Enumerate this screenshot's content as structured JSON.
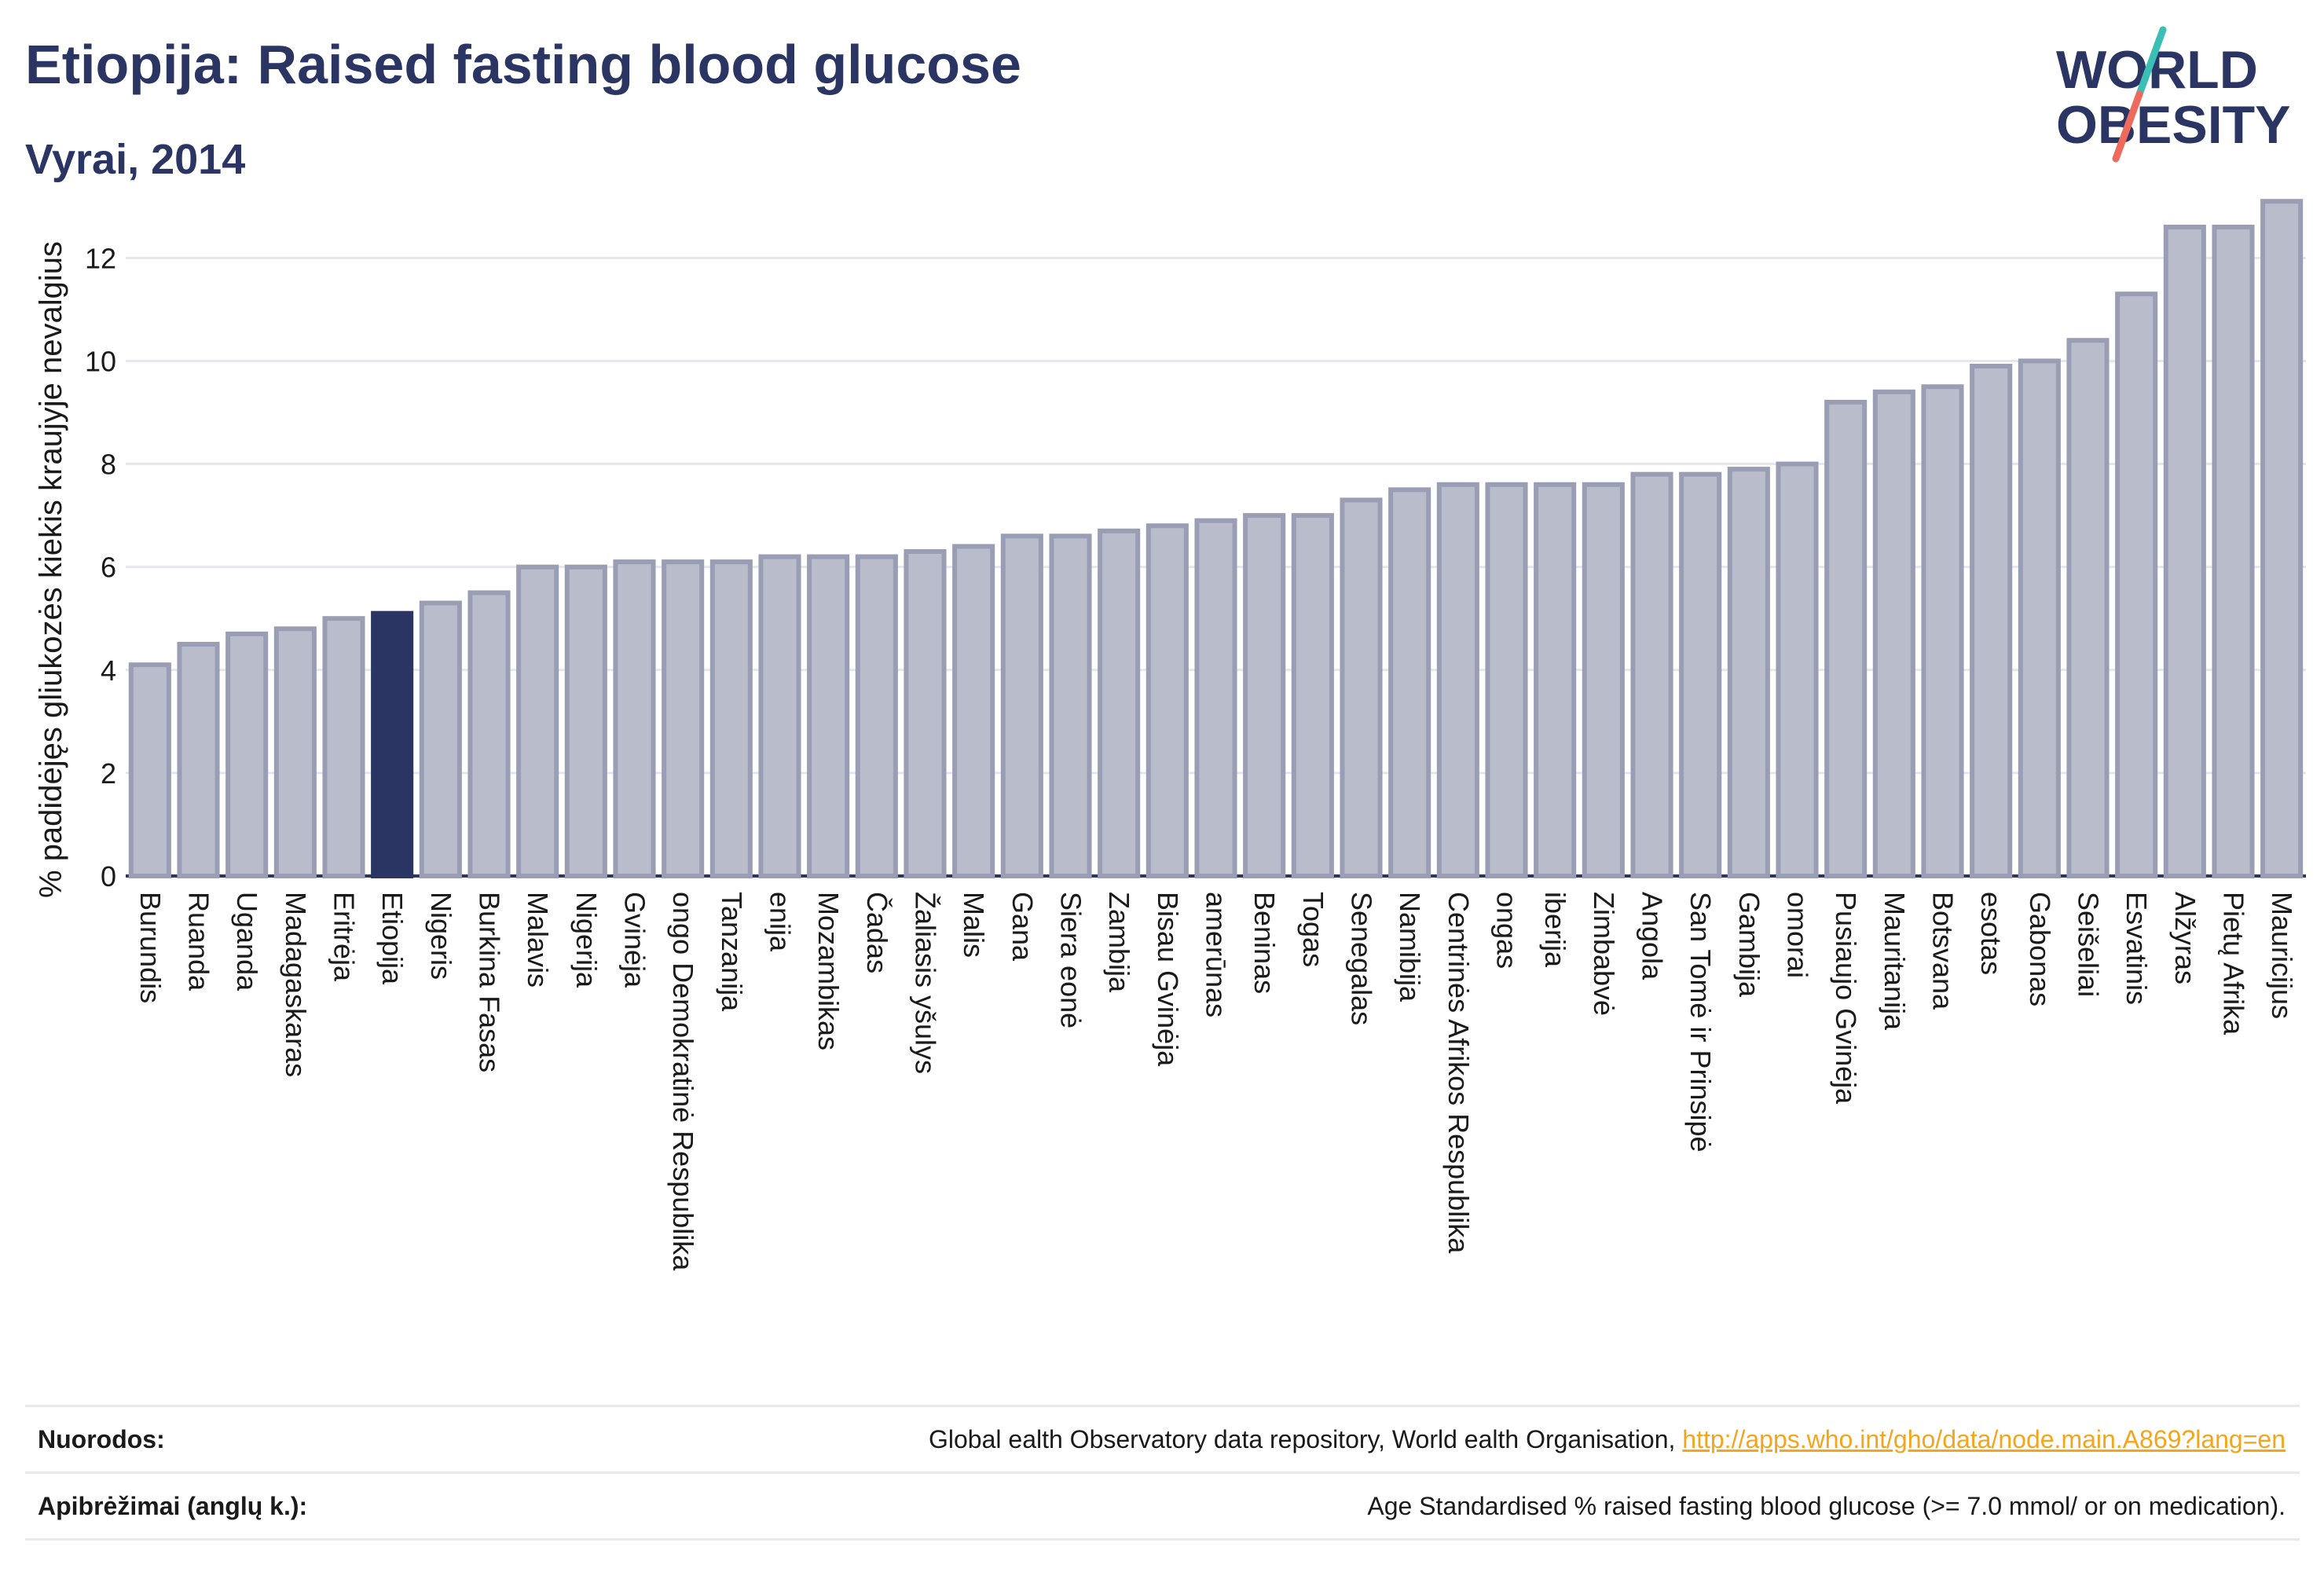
{
  "header": {
    "title": "Etiopija: Raised fasting blood glucose",
    "subtitle": "Vyrai, 2014"
  },
  "logo": {
    "line1": "WORLD",
    "line2": "OBESITY",
    "colors": {
      "text": "#2a3563",
      "slash_teal": "#3bbfb5",
      "slash_coral": "#ef6a5c"
    }
  },
  "chart_data": {
    "type": "bar",
    "ylabel": "% padidėjęs gliukozės kiekis kraujyje nevalgius",
    "xlabel": "",
    "ylim": [
      0,
      13.5
    ],
    "yticks": [
      0,
      2,
      4,
      6,
      8,
      10,
      12
    ],
    "highlight": "Etiopija",
    "colors": {
      "bar": "#b9bccb",
      "bar_stroke": "#9a9eb5",
      "highlight": "#2a3563",
      "grid": "#e6e7ee",
      "axis": "#2a3563"
    },
    "categories": [
      "Burundis",
      "Ruanda",
      "Uganda",
      "Madagaskaras",
      "Eritrėja",
      "Etiopija",
      "Nigeris",
      "Burkina Fasas",
      "Malavis",
      "Nigerija",
      "Gvinėja",
      "ongo Demokratinė Respublika",
      "Tanzanija",
      "enija",
      "Mozambikas",
      "Čadas",
      "Žaliasis yšulys",
      "Malis",
      "Gana",
      "Siera eonė",
      "Zambija",
      "Bisau Gvinėja",
      "amerūnas",
      "Beninas",
      "Togas",
      "Senegalas",
      "Namibija",
      "Centrinės Afrikos Respublika",
      "ongas",
      "iberija",
      "Zimbabvė",
      "Angola",
      "San Tomė ir Prinsipė",
      "Gambija",
      "omorai",
      "Pusiaujo Gvinėja",
      "Mauritanija",
      "Botsvana",
      "esotas",
      "Gabonas",
      "Seišeliai",
      "Esvatinis",
      "Alžyras",
      "Pietų Afrika",
      "Mauricijus"
    ],
    "values": [
      4.1,
      4.5,
      4.7,
      4.8,
      5.0,
      5.1,
      5.3,
      5.5,
      6.0,
      6.0,
      6.1,
      6.1,
      6.1,
      6.2,
      6.2,
      6.2,
      6.3,
      6.4,
      6.6,
      6.6,
      6.7,
      6.8,
      6.9,
      7.0,
      7.0,
      7.3,
      7.5,
      7.6,
      7.6,
      7.6,
      7.6,
      7.8,
      7.8,
      7.9,
      8.0,
      9.2,
      9.4,
      9.5,
      9.9,
      10.0,
      10.4,
      11.3,
      12.6,
      12.6,
      13.1
    ]
  },
  "footer": {
    "sources_label": "Nuorodos:",
    "sources_text": "Global    ealth Observatory data repository, World    ealth Organisation, ",
    "sources_link": "http://apps.who.int/gho/data/node.main.A869?lang=en",
    "definitions_label": "Apibrėžimai (anglų k.):",
    "definitions_text": "Age Standardised % raised fasting blood glucose (>= 7.0 mmol/ or on medication)."
  }
}
